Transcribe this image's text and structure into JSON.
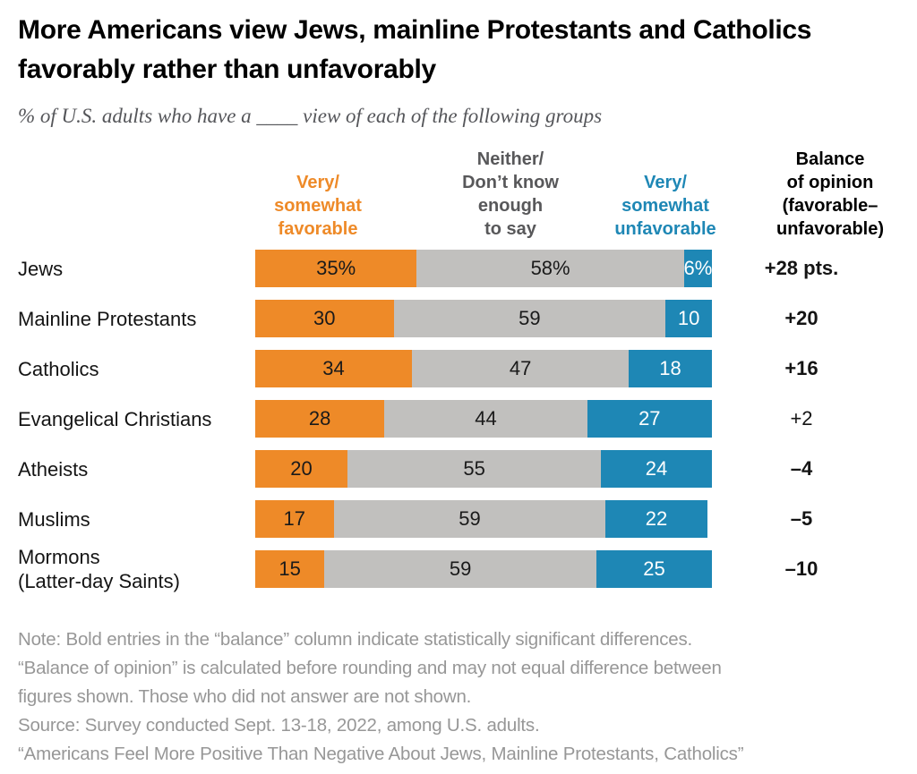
{
  "header": {
    "title": "More Americans view Jews, mainline Protestants and Catholics favorably rather than unfavorably",
    "subtitle": "% of U.S. adults who have a ____ view of each of the following groups"
  },
  "columns": [
    {
      "id": "favorable",
      "label": "Very/\nsomewhat\nfavorable",
      "color": "#EE8A28"
    },
    {
      "id": "neither",
      "label": "Neither/\nDon’t know\nenough\nto say",
      "color": "#58585A"
    },
    {
      "id": "unfavorable",
      "label": "Very/\nsomewhat\nunfavorable",
      "color": "#1E87B5"
    },
    {
      "id": "balance",
      "label": "Balance\nof opinion\n(favorable–\nunfavorable)",
      "color": "#000000"
    }
  ],
  "chart_data": {
    "type": "bar",
    "orientation": "horizontal",
    "stacked": true,
    "xlim": [
      0,
      100
    ],
    "grid": false,
    "legend_position": "top",
    "categories": [
      "Jews",
      "Mainline Protestants",
      "Catholics",
      "Evangelical Christians",
      "Atheists",
      "Muslims",
      "Mormons\n(Latter-day Saints)"
    ],
    "series": [
      {
        "name": "Very/somewhat favorable",
        "color": "#EE8A28",
        "text_color": "#1a1a1a",
        "values": [
          35,
          30,
          34,
          28,
          20,
          17,
          15
        ]
      },
      {
        "name": "Neither/Don't know enough to say",
        "color": "#C1C0BE",
        "text_color": "#1a1a1a",
        "values": [
          58,
          59,
          47,
          44,
          55,
          59,
          59
        ]
      },
      {
        "name": "Very/somewhat unfavorable",
        "color": "#1E87B5",
        "text_color": "#ffffff",
        "values": [
          6,
          10,
          18,
          27,
          24,
          22,
          25
        ]
      }
    ],
    "value_labels": [
      [
        "35%",
        "58%",
        "6%"
      ],
      [
        "30",
        "59",
        "10"
      ],
      [
        "34",
        "47",
        "18"
      ],
      [
        "28",
        "44",
        "27"
      ],
      [
        "20",
        "55",
        "24"
      ],
      [
        "17",
        "59",
        "22"
      ],
      [
        "15",
        "59",
        "25"
      ]
    ],
    "balance": [
      {
        "label": "+28 pts.",
        "bold": true
      },
      {
        "label": "+20",
        "bold": true
      },
      {
        "label": "+16",
        "bold": true
      },
      {
        "label": "+2",
        "bold": false
      },
      {
        "label": "–4",
        "bold": true
      },
      {
        "label": "–5",
        "bold": true
      },
      {
        "label": "–10",
        "bold": true
      }
    ]
  },
  "footer": {
    "lines": [
      "Note: Bold entries in the “balance” column indicate statistically significant differences.",
      "“Balance of opinion” is calculated before rounding and may not equal difference between",
      "figures shown. Those who did not answer are not shown.",
      "Source: Survey conducted Sept. 13-18, 2022, among U.S. adults.",
      "“Americans Feel More Positive Than Negative About Jews, Mainline Protestants, Catholics”"
    ]
  }
}
